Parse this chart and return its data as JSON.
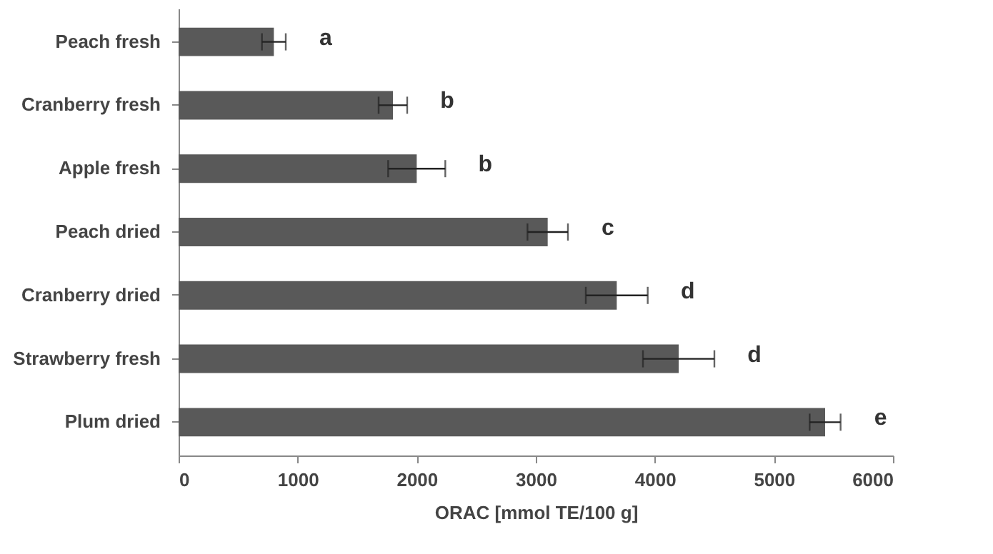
{
  "chart_data": {
    "type": "bar",
    "orientation": "horizontal",
    "xlabel": "ORAC [mmol TE/100 g]",
    "categories": [
      "Peach fresh",
      "Cranberry fresh",
      "Apple fresh",
      "Peach dried",
      "Cranberry dried",
      "Strawberry fresh",
      "Plum dried"
    ],
    "values": [
      800,
      1800,
      2000,
      3100,
      3680,
      4200,
      5430
    ],
    "errors": [
      100,
      120,
      240,
      170,
      260,
      300,
      130
    ],
    "color": "#595959",
    "xlim": [
      0,
      6000
    ],
    "xticks": [
      0,
      1000,
      2000,
      3000,
      4000,
      5000,
      6000
    ],
    "grid": false,
    "annotations": [
      {
        "text": "a",
        "x": 800,
        "y": "Peach fresh"
      },
      {
        "text": "b",
        "x": 1800,
        "y": "Cranberry fresh"
      },
      {
        "text": "b",
        "x": 2000,
        "y": "Apple fresh"
      },
      {
        "text": "c",
        "x": 3100,
        "y": "Peach dried"
      },
      {
        "text": "d",
        "x": 3680,
        "y": "Cranberry dried"
      },
      {
        "text": "d",
        "x": 4200,
        "y": "Strawberry fresh"
      },
      {
        "text": "e",
        "x": 5430,
        "y": "Plum dried"
      }
    ]
  }
}
